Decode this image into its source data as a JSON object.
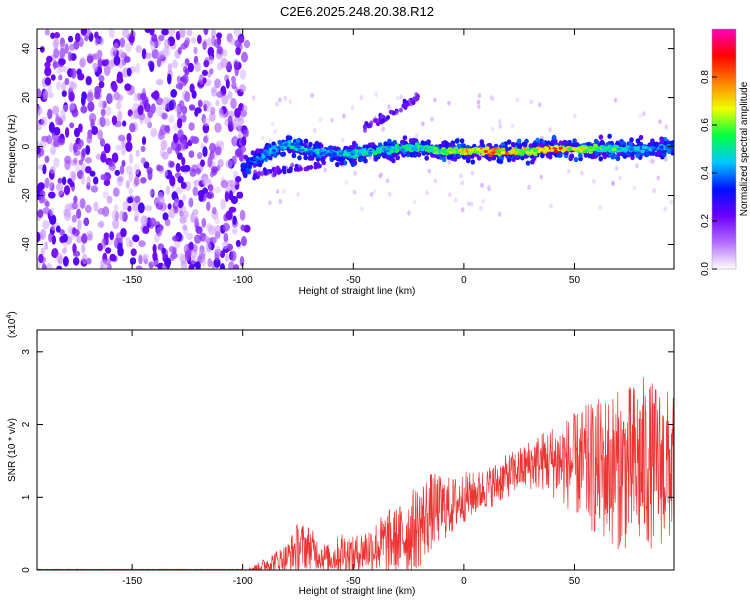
{
  "title": "C2E6.2025.248.20.38.R12",
  "chart_data": [
    {
      "type": "heatmap",
      "name": "spectrogram",
      "xlabel": "Height of straight line (km)",
      "ylabel": "Frequency (Hz)",
      "xlim": [
        -193,
        95
      ],
      "ylim": [
        -50,
        48
      ],
      "xticks": [
        -150,
        -100,
        -50,
        0,
        50
      ],
      "yticks": [
        -40,
        -20,
        0,
        20,
        40
      ],
      "colorbar": {
        "label": "Normalized spectral amplitude",
        "range": [
          0,
          1
        ],
        "ticks": [
          "0.0",
          "0.2",
          "0.4",
          "0.6",
          "0.8"
        ],
        "tick_values": [
          0.0,
          0.2,
          0.4,
          0.6,
          0.8
        ],
        "colors": [
          "#ffffff",
          "#b36bff",
          "#6a00ff",
          "#0010ff",
          "#00c8ff",
          "#00ff40",
          "#f0ff00",
          "#ff8000",
          "#ff0000",
          "#ff00c0"
        ]
      },
      "features": [
        {
          "name": "noise region",
          "x_range": [
            -193,
            -98
          ],
          "freq_range": [
            -50,
            48
          ],
          "amplitude": 0.15
        },
        {
          "name": "main band",
          "x": [
            -100,
            -90,
            -80,
            -70,
            -60,
            -50,
            -40,
            -30,
            -20,
            -10,
            0,
            10,
            20,
            30,
            40,
            50,
            60,
            70,
            80,
            95
          ],
          "freq": [
            -9,
            -3,
            1,
            -2,
            -3,
            -3,
            -2,
            -1,
            0,
            -2,
            -2,
            -2,
            -2,
            -2,
            -1,
            -1,
            -1,
            -1,
            -1,
            0
          ],
          "amplitude": [
            0.3,
            0.45,
            0.5,
            0.45,
            0.45,
            0.5,
            0.5,
            0.5,
            0.55,
            0.6,
            0.75,
            0.8,
            0.75,
            0.65,
            0.85,
            0.7,
            0.6,
            0.55,
            0.45,
            0.4
          ]
        },
        {
          "name": "upper branch",
          "x": [
            -45,
            -40,
            -35,
            -30,
            -25,
            -20
          ],
          "freq": [
            8,
            10,
            12,
            15,
            18,
            21
          ],
          "amplitude": 0.25
        },
        {
          "name": "lower branch",
          "x": [
            -95,
            -85,
            -75,
            -65
          ],
          "freq": [
            -12,
            -10,
            -9,
            -8
          ],
          "amplitude": 0.25
        }
      ]
    },
    {
      "type": "line",
      "name": "snr",
      "xlabel": "Height of straight line (km)",
      "ylabel": "SNR (10 * v/v)",
      "y_multiplier": "(x10",
      "y_multiplier_exp": "4",
      "y_multiplier_close": ")",
      "xlim": [
        -193,
        95
      ],
      "ylim": [
        0,
        3.3
      ],
      "xticks": [
        -150,
        -100,
        -50,
        0,
        50
      ],
      "yticks": [
        0,
        1,
        2,
        3
      ],
      "series": [
        {
          "name": "SNR",
          "color": "#ee3333",
          "x": [
            -193,
            -100,
            -95,
            -90,
            -85,
            -80,
            -75,
            -70,
            -65,
            -60,
            -55,
            -50,
            -45,
            -40,
            -35,
            -30,
            -25,
            -20,
            -15,
            -10,
            -5,
            0,
            5,
            10,
            15,
            20,
            25,
            30,
            35,
            40,
            45,
            50,
            55,
            60,
            65,
            70,
            75,
            80,
            85,
            90,
            95
          ],
          "mean": [
            0.0,
            0.0,
            0.02,
            0.07,
            0.12,
            0.17,
            0.32,
            0.32,
            0.2,
            0.15,
            0.25,
            0.2,
            0.28,
            0.32,
            0.38,
            0.42,
            0.5,
            0.62,
            0.8,
            0.85,
            0.88,
            1.0,
            1.05,
            1.12,
            1.2,
            1.3,
            1.38,
            1.45,
            1.5,
            1.5,
            1.48,
            1.46,
            1.42,
            1.4,
            1.4,
            1.38,
            1.4,
            1.45,
            1.45,
            1.42,
            1.4
          ],
          "spread": [
            0.0,
            0.0,
            0.04,
            0.1,
            0.15,
            0.2,
            0.35,
            0.3,
            0.2,
            0.18,
            0.3,
            0.25,
            0.3,
            0.35,
            0.45,
            0.45,
            0.55,
            0.6,
            0.55,
            0.45,
            0.4,
            0.35,
            0.3,
            0.28,
            0.3,
            0.3,
            0.3,
            0.35,
            0.4,
            0.5,
            0.6,
            0.7,
            0.85,
            0.95,
            1.05,
            1.1,
            1.15,
            1.25,
            1.15,
            1.1,
            1.05
          ]
        }
      ]
    }
  ]
}
